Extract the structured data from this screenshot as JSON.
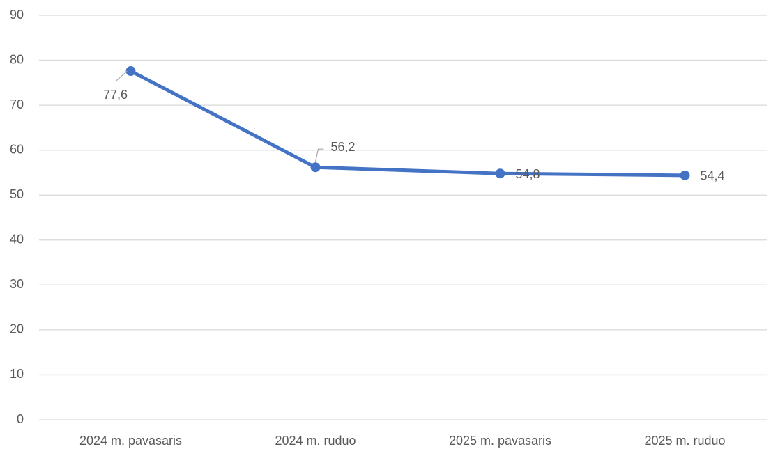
{
  "chart_data": {
    "type": "line",
    "categories": [
      "2024 m. pavasaris",
      "2024 m. ruduo",
      "2025 m. pavasaris",
      "2025 m. ruduo"
    ],
    "series": [
      {
        "color": "#4472c4",
        "values": [
          77.6,
          56.2,
          54.8,
          54.4
        ],
        "value_labels": [
          "77,6",
          "56,2",
          "54,8",
          "54,4"
        ]
      }
    ],
    "ylim": [
      0,
      90
    ],
    "yticks": [
      0,
      10,
      20,
      30,
      40,
      50,
      60,
      70,
      80,
      90
    ],
    "grid": true
  }
}
